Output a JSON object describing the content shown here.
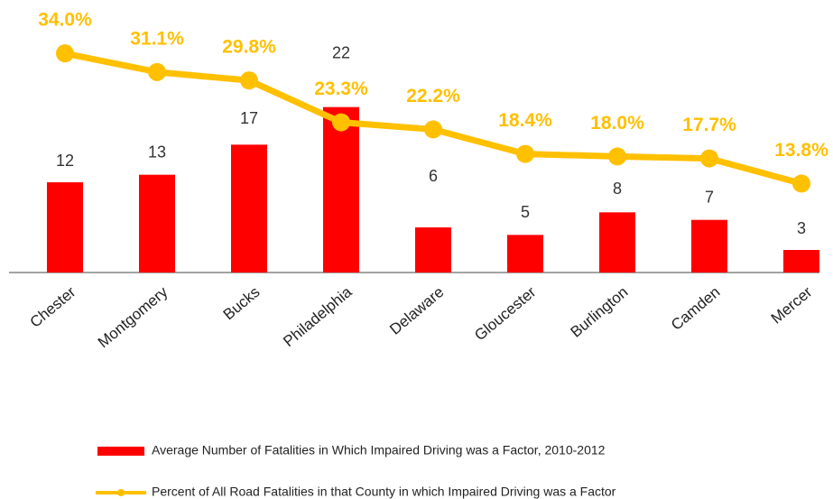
{
  "chart_data": {
    "type": "bar_line",
    "categories": [
      "Chester",
      "Montgomery",
      "Bucks",
      "Philadelphia",
      "Delaware",
      "Gloucester",
      "Burlington",
      "Camden",
      "Mercer"
    ],
    "series": [
      {
        "name": "Average Number of Fatalities in Which Impaired Driving  was a Factor, 2010-2012",
        "type": "bar",
        "color": "#ff0000",
        "values": [
          12,
          13,
          17,
          22,
          6,
          5,
          8,
          7,
          3
        ]
      },
      {
        "name": "Percent of All Road Fatalities in that County in which Impaired Driving was a Factor",
        "type": "line",
        "color": "#ffc000",
        "axis": "y2",
        "values": [
          34.0,
          31.1,
          29.8,
          23.3,
          22.2,
          18.4,
          18.0,
          17.7,
          13.8
        ],
        "value_labels": [
          "34.0%",
          "31.1%",
          "29.8%",
          "23.3%",
          "22.2%",
          "18.4%",
          "18.0%",
          "17.7%",
          "13.8%"
        ]
      }
    ],
    "ylim": [
      0,
      36
    ],
    "y2lim": [
      0,
      42
    ],
    "legend": "bottom"
  }
}
